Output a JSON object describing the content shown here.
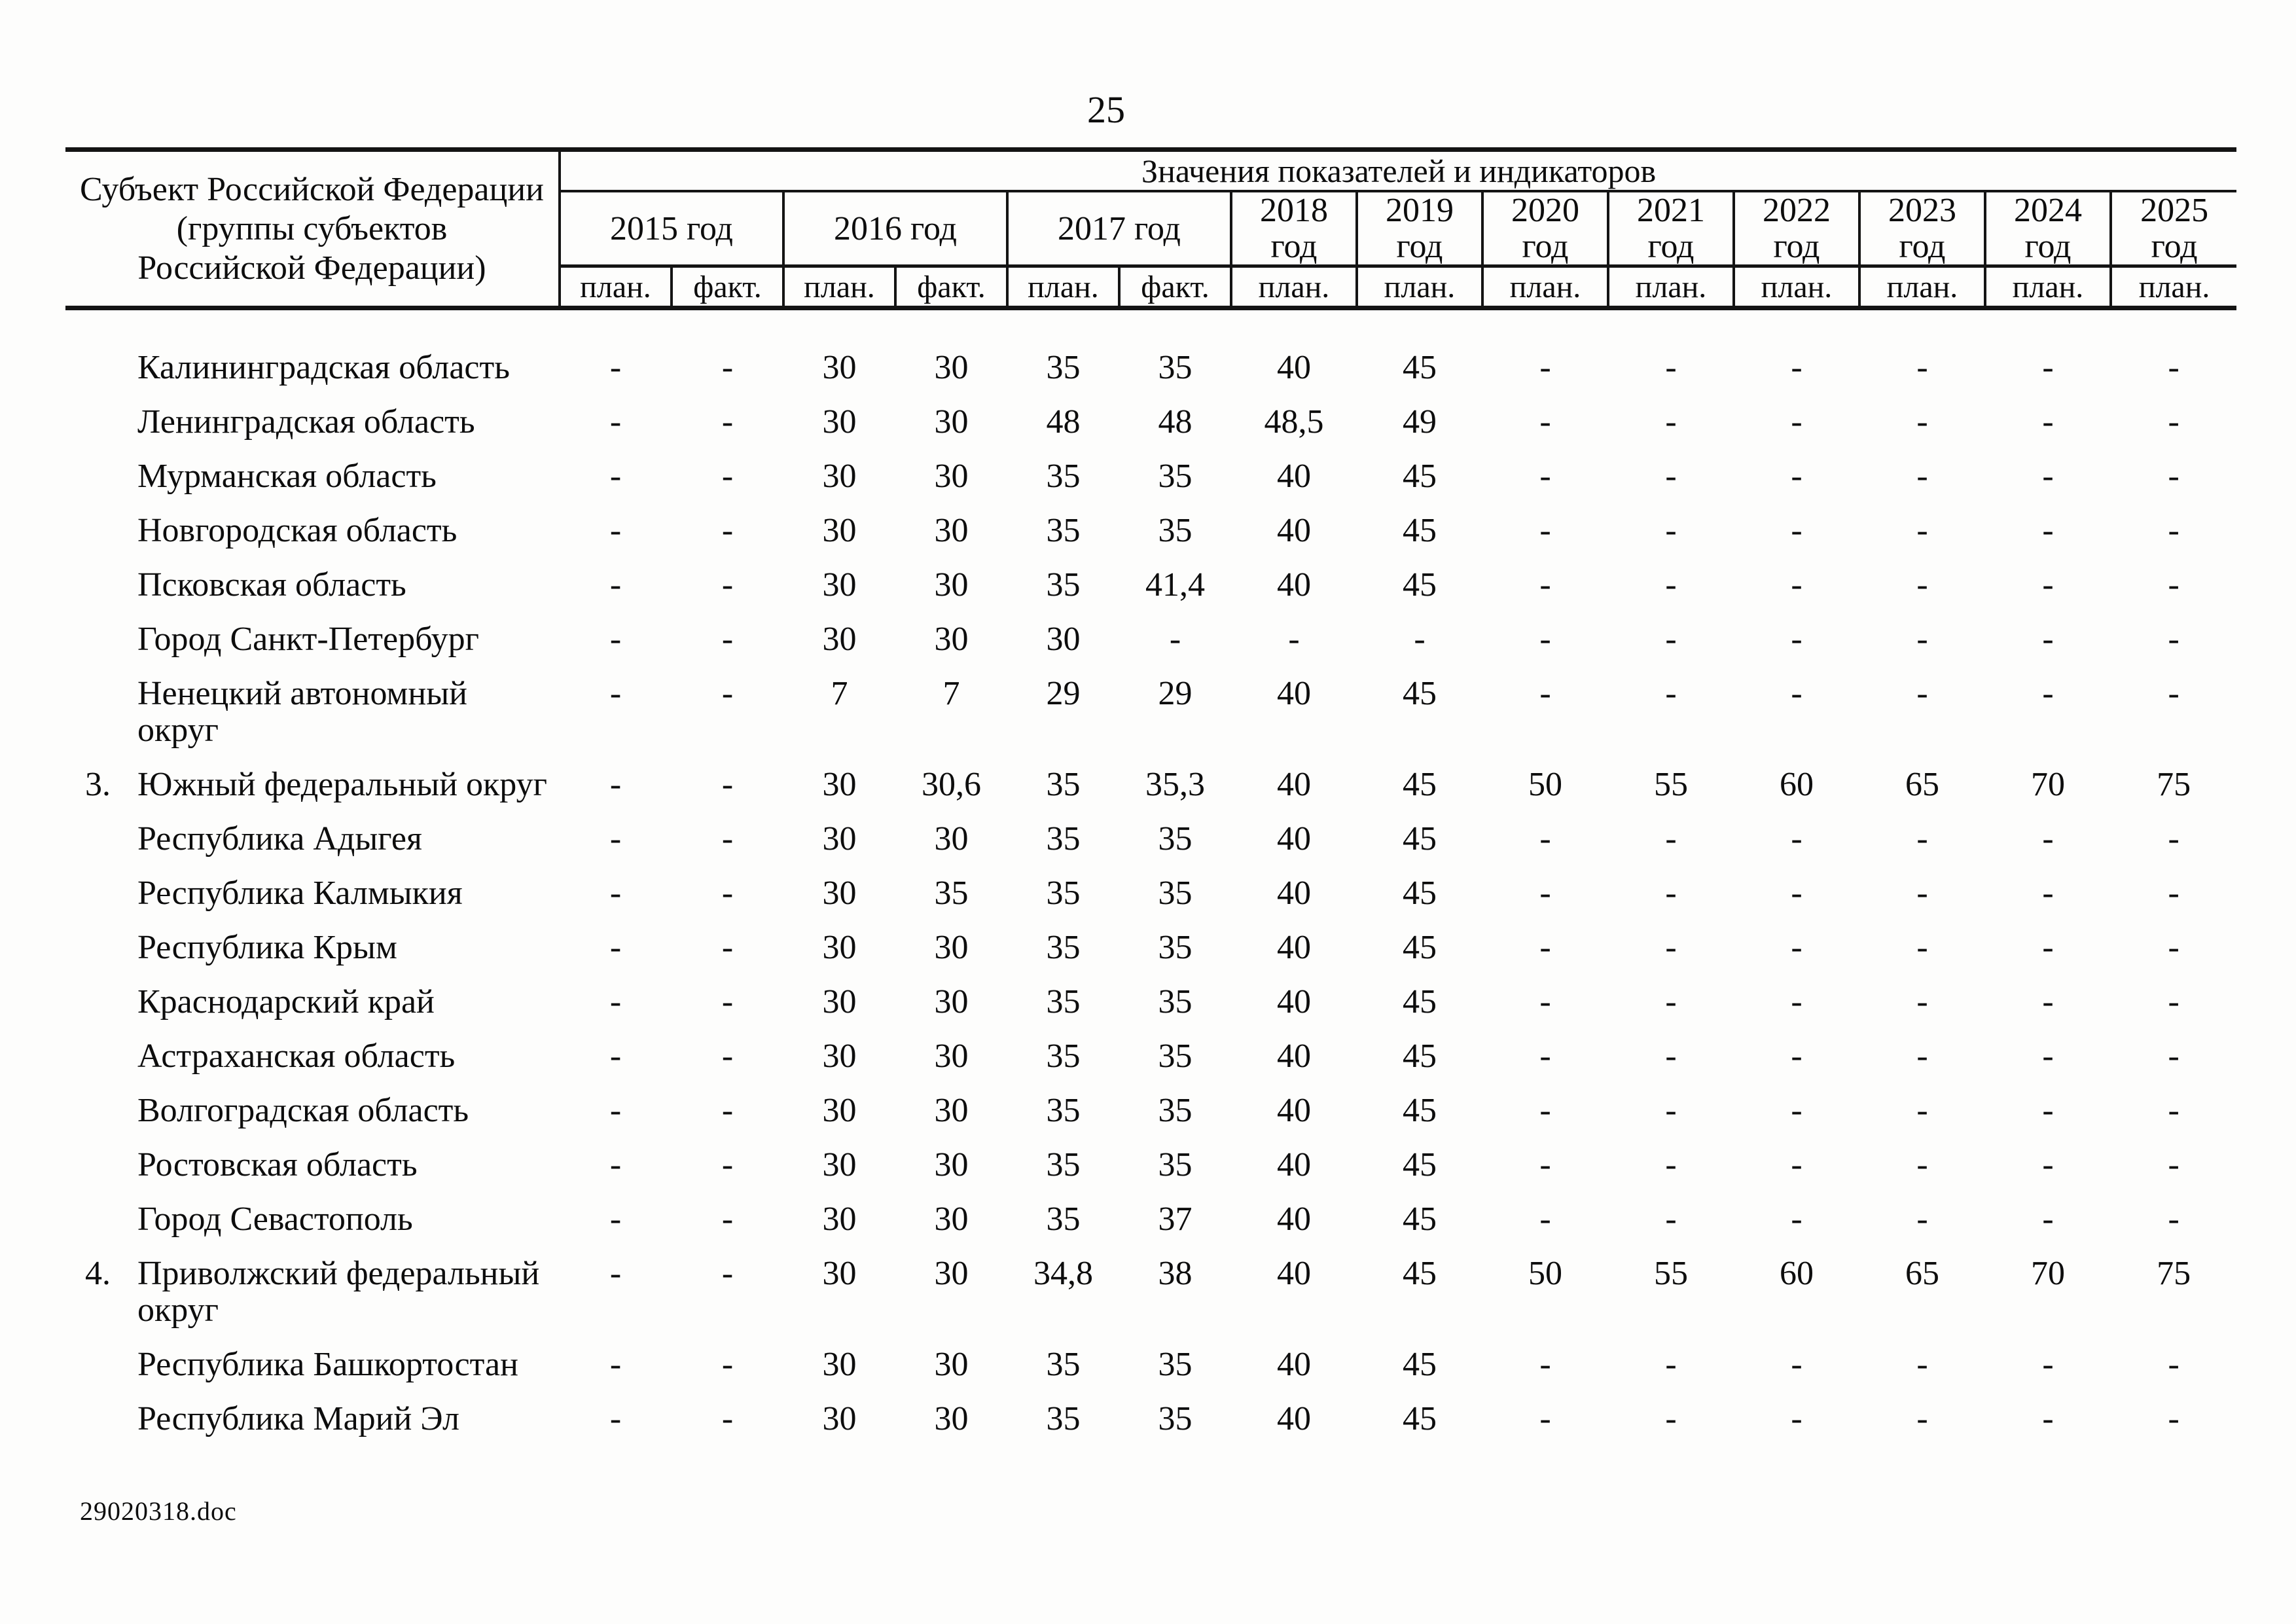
{
  "page": {
    "number": "25",
    "footer": "29020318.doc"
  },
  "table": {
    "subject_header": "Субъект Российской Федерации\n(группы субъектов\nРоссийской Федерации)",
    "values_header": "Значения показателей и индикаторов",
    "year_groups": [
      {
        "label": "2015 год",
        "subs": [
          "план.",
          "факт."
        ]
      },
      {
        "label": "2016 год",
        "subs": [
          "план.",
          "факт."
        ]
      },
      {
        "label": "2017 год",
        "subs": [
          "план.",
          "факт."
        ]
      },
      {
        "label": "2018 год",
        "subs": [
          "план."
        ]
      },
      {
        "label": "2019 год",
        "subs": [
          "план."
        ]
      },
      {
        "label": "2020 год",
        "subs": [
          "план."
        ]
      },
      {
        "label": "2021 год",
        "subs": [
          "план."
        ]
      },
      {
        "label": "2022 год",
        "subs": [
          "план."
        ]
      },
      {
        "label": "2023 год",
        "subs": [
          "план."
        ]
      },
      {
        "label": "2024 год",
        "subs": [
          "план."
        ]
      },
      {
        "label": "2025 год",
        "subs": [
          "план."
        ]
      }
    ],
    "rows": [
      {
        "num": "",
        "name": "Калининградская область",
        "values": [
          "-",
          "-",
          "30",
          "30",
          "35",
          "35",
          "40",
          "45",
          "-",
          "-",
          "-",
          "-",
          "-",
          "-"
        ]
      },
      {
        "num": "",
        "name": "Ленинградская область",
        "values": [
          "-",
          "-",
          "30",
          "30",
          "48",
          "48",
          "48,5",
          "49",
          "-",
          "-",
          "-",
          "-",
          "-",
          "-"
        ]
      },
      {
        "num": "",
        "name": "Мурманская область",
        "values": [
          "-",
          "-",
          "30",
          "30",
          "35",
          "35",
          "40",
          "45",
          "-",
          "-",
          "-",
          "-",
          "-",
          "-"
        ]
      },
      {
        "num": "",
        "name": "Новгородская область",
        "values": [
          "-",
          "-",
          "30",
          "30",
          "35",
          "35",
          "40",
          "45",
          "-",
          "-",
          "-",
          "-",
          "-",
          "-"
        ]
      },
      {
        "num": "",
        "name": "Псковская область",
        "values": [
          "-",
          "-",
          "30",
          "30",
          "35",
          "41,4",
          "40",
          "45",
          "-",
          "-",
          "-",
          "-",
          "-",
          "-"
        ]
      },
      {
        "num": "",
        "name": "Город Санкт-Петербург",
        "values": [
          "-",
          "-",
          "30",
          "30",
          "30",
          "-",
          "-",
          "-",
          "-",
          "-",
          "-",
          "-",
          "-",
          "-"
        ]
      },
      {
        "num": "",
        "name": "Ненецкий автономный\nокруг",
        "values": [
          "-",
          "-",
          "7",
          "7",
          "29",
          "29",
          "40",
          "45",
          "-",
          "-",
          "-",
          "-",
          "-",
          "-"
        ]
      },
      {
        "num": "3.",
        "name": "Южный федеральный округ",
        "values": [
          "-",
          "-",
          "30",
          "30,6",
          "35",
          "35,3",
          "40",
          "45",
          "50",
          "55",
          "60",
          "65",
          "70",
          "75"
        ]
      },
      {
        "num": "",
        "name": "Республика Адыгея",
        "values": [
          "-",
          "-",
          "30",
          "30",
          "35",
          "35",
          "40",
          "45",
          "-",
          "-",
          "-",
          "-",
          "-",
          "-"
        ]
      },
      {
        "num": "",
        "name": "Республика Калмыкия",
        "values": [
          "-",
          "-",
          "30",
          "35",
          "35",
          "35",
          "40",
          "45",
          "-",
          "-",
          "-",
          "-",
          "-",
          "-"
        ]
      },
      {
        "num": "",
        "name": "Республика Крым",
        "values": [
          "-",
          "-",
          "30",
          "30",
          "35",
          "35",
          "40",
          "45",
          "-",
          "-",
          "-",
          "-",
          "-",
          "-"
        ]
      },
      {
        "num": "",
        "name": "Краснодарский край",
        "values": [
          "-",
          "-",
          "30",
          "30",
          "35",
          "35",
          "40",
          "45",
          "-",
          "-",
          "-",
          "-",
          "-",
          "-"
        ]
      },
      {
        "num": "",
        "name": "Астраханская область",
        "values": [
          "-",
          "-",
          "30",
          "30",
          "35",
          "35",
          "40",
          "45",
          "-",
          "-",
          "-",
          "-",
          "-",
          "-"
        ]
      },
      {
        "num": "",
        "name": "Волгоградская область",
        "values": [
          "-",
          "-",
          "30",
          "30",
          "35",
          "35",
          "40",
          "45",
          "-",
          "-",
          "-",
          "-",
          "-",
          "-"
        ]
      },
      {
        "num": "",
        "name": "Ростовская область",
        "values": [
          "-",
          "-",
          "30",
          "30",
          "35",
          "35",
          "40",
          "45",
          "-",
          "-",
          "-",
          "-",
          "-",
          "-"
        ]
      },
      {
        "num": "",
        "name": "Город Севастополь",
        "values": [
          "-",
          "-",
          "30",
          "30",
          "35",
          "37",
          "40",
          "45",
          "-",
          "-",
          "-",
          "-",
          "-",
          "-"
        ]
      },
      {
        "num": "4.",
        "name": "Приволжский федеральный\nокруг",
        "values": [
          "-",
          "-",
          "30",
          "30",
          "34,8",
          "38",
          "40",
          "45",
          "50",
          "55",
          "60",
          "65",
          "70",
          "75"
        ]
      },
      {
        "num": "",
        "name": "Республика Башкортостан",
        "values": [
          "-",
          "-",
          "30",
          "30",
          "35",
          "35",
          "40",
          "45",
          "-",
          "-",
          "-",
          "-",
          "-",
          "-"
        ]
      },
      {
        "num": "",
        "name": "Республика Марий Эл",
        "values": [
          "-",
          "-",
          "30",
          "30",
          "35",
          "35",
          "40",
          "45",
          "-",
          "-",
          "-",
          "-",
          "-",
          "-"
        ]
      }
    ]
  }
}
